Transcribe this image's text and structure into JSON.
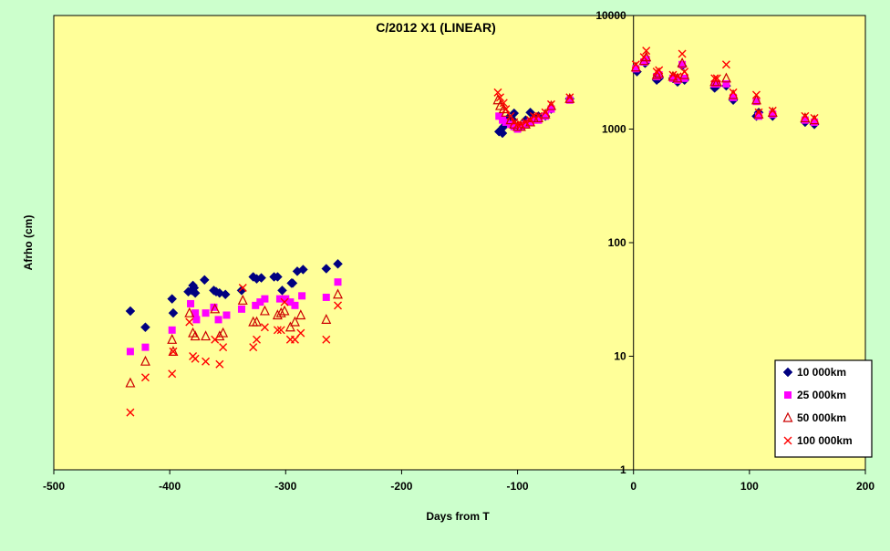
{
  "chart_data": {
    "type": "scatter",
    "title": "C/2012 X1 (LINEAR)",
    "xlabel": "Days from T",
    "ylabel": "Afrho (cm)",
    "xlim": [
      -500,
      200
    ],
    "ylim": [
      1,
      10000
    ],
    "y_scale": "log",
    "x_ticks": [
      -500,
      -400,
      -300,
      -200,
      -100,
      0,
      100,
      200
    ],
    "y_ticks": [
      1,
      10,
      100,
      1000,
      10000
    ],
    "x_tick_labels": [
      "-500",
      "-400",
      "-300",
      "-200",
      "-100",
      "0",
      "100",
      "200"
    ],
    "y_tick_labels": [
      "1",
      "10",
      "100",
      "1000",
      "10000"
    ],
    "grid": false,
    "legend_position": "bottom-right",
    "colors": {
      "page_background": "#ccffcc",
      "plot_background": "#ffff99",
      "axis": "#000000"
    },
    "series": [
      {
        "name": "10 000km",
        "marker": "diamond",
        "color": "#000080",
        "x": [
          -434,
          -421,
          -398,
          -397,
          -384,
          -381,
          -380,
          -379,
          -378,
          -370,
          -362,
          -360,
          -357,
          -352,
          -338,
          -328,
          -325,
          -321,
          -310,
          -307,
          -303,
          -295,
          -294,
          -290,
          -285,
          -265,
          -255,
          -116,
          -113,
          -112,
          -108,
          -104,
          -103,
          -100,
          -97,
          -93,
          -89,
          -86,
          -82,
          -76,
          -71,
          -55,
          3,
          10,
          11,
          20,
          22,
          34,
          38,
          42,
          44,
          70,
          72,
          80,
          86,
          106,
          108,
          120,
          148,
          156
        ],
        "y": [
          25,
          18,
          32,
          24,
          37,
          38,
          42,
          40,
          36,
          47,
          38,
          37,
          36,
          35,
          38,
          50,
          48,
          49,
          50,
          50,
          38,
          44,
          44,
          56,
          58,
          59,
          65,
          950,
          920,
          1050,
          1250,
          1200,
          1380,
          1050,
          1050,
          1200,
          1400,
          1250,
          1300,
          1300,
          1500,
          1850,
          3200,
          3800,
          4000,
          2700,
          2800,
          2800,
          2600,
          3600,
          2700,
          2300,
          2400,
          2400,
          1800,
          1300,
          1400,
          1300,
          1150,
          1100
        ]
      },
      {
        "name": "25 000km",
        "marker": "square",
        "color": "#ff00ff",
        "x": [
          -434,
          -421,
          -398,
          -382,
          -378,
          -377,
          -369,
          -362,
          -358,
          -351,
          -338,
          -326,
          -322,
          -318,
          -305,
          -300,
          -296,
          -292,
          -286,
          -265,
          -255,
          -116,
          -113,
          -110,
          -106,
          -103,
          -100,
          -97,
          -93,
          -89,
          -86,
          -82,
          -76,
          -71,
          -55,
          2,
          9,
          11,
          20,
          22,
          34,
          38,
          42,
          44,
          70,
          72,
          80,
          86,
          106,
          108,
          120,
          148,
          156
        ],
        "y": [
          11,
          12,
          17,
          29,
          24,
          21,
          24,
          27,
          21,
          23,
          26,
          28,
          30,
          32,
          32,
          32,
          30,
          28,
          34,
          33,
          45,
          1300,
          1200,
          1150,
          1100,
          1050,
          1000,
          1050,
          1100,
          1150,
          1200,
          1200,
          1300,
          1500,
          1800,
          3400,
          3900,
          4100,
          2900,
          3000,
          2800,
          2700,
          3700,
          2800,
          2500,
          2500,
          2500,
          1900,
          1750,
          1300,
          1350,
          1200,
          1150
        ]
      },
      {
        "name": "50 000km",
        "marker": "triangle",
        "color": "#cc0000",
        "x": [
          -434,
          -421,
          -398,
          -397,
          -383,
          -380,
          -378,
          -369,
          -361,
          -357,
          -354,
          -337,
          -328,
          -325,
          -318,
          -307,
          -304,
          -301,
          -296,
          -292,
          -287,
          -265,
          -255,
          -117,
          -115,
          -112,
          -110,
          -106,
          -103,
          -100,
          -97,
          -93,
          -89,
          -86,
          -82,
          -76,
          -71,
          -55,
          2,
          9,
          11,
          20,
          22,
          34,
          38,
          42,
          44,
          70,
          72,
          80,
          86,
          106,
          108,
          120,
          148,
          156
        ],
        "y": [
          5.8,
          9,
          14,
          11,
          24,
          16,
          15,
          15,
          26,
          15,
          16,
          31,
          20,
          20,
          25,
          23,
          24,
          25,
          18,
          20,
          23,
          21,
          35,
          1800,
          1600,
          1500,
          1400,
          1200,
          1100,
          1050,
          1050,
          1100,
          1150,
          1250,
          1250,
          1350,
          1600,
          1850,
          3500,
          4000,
          4300,
          3000,
          3100,
          2900,
          2800,
          3800,
          3000,
          2600,
          2600,
          2800,
          2000,
          1800,
          1350,
          1400,
          1250,
          1200
        ]
      },
      {
        "name": "100 000km",
        "marker": "x",
        "color": "#ff0000",
        "x": [
          -434,
          -421,
          -398,
          -397,
          -383,
          -380,
          -378,
          -369,
          -361,
          -357,
          -354,
          -337,
          -328,
          -325,
          -318,
          -307,
          -304,
          -301,
          -296,
          -292,
          -287,
          -265,
          -255,
          -117,
          -115,
          -112,
          -110,
          -106,
          -103,
          -100,
          -97,
          -93,
          -89,
          -86,
          -82,
          -76,
          -71,
          -55,
          2,
          9,
          11,
          20,
          22,
          34,
          38,
          42,
          44,
          70,
          72,
          80,
          86,
          106,
          108,
          120,
          148,
          156
        ],
        "y": [
          3.2,
          6.5,
          7,
          11,
          20,
          10,
          9.5,
          9,
          14,
          8.5,
          12,
          40,
          12,
          14,
          18,
          17,
          17,
          30,
          14,
          14,
          16,
          14,
          28,
          2100,
          1900,
          1700,
          1500,
          1300,
          1150,
          1100,
          1100,
          1150,
          1200,
          1300,
          1300,
          1400,
          1650,
          1900,
          3700,
          4300,
          4900,
          3200,
          3300,
          3000,
          2900,
          4600,
          3200,
          2800,
          2800,
          3700,
          2100,
          2000,
          1400,
          1450,
          1300,
          1250
        ]
      }
    ]
  }
}
